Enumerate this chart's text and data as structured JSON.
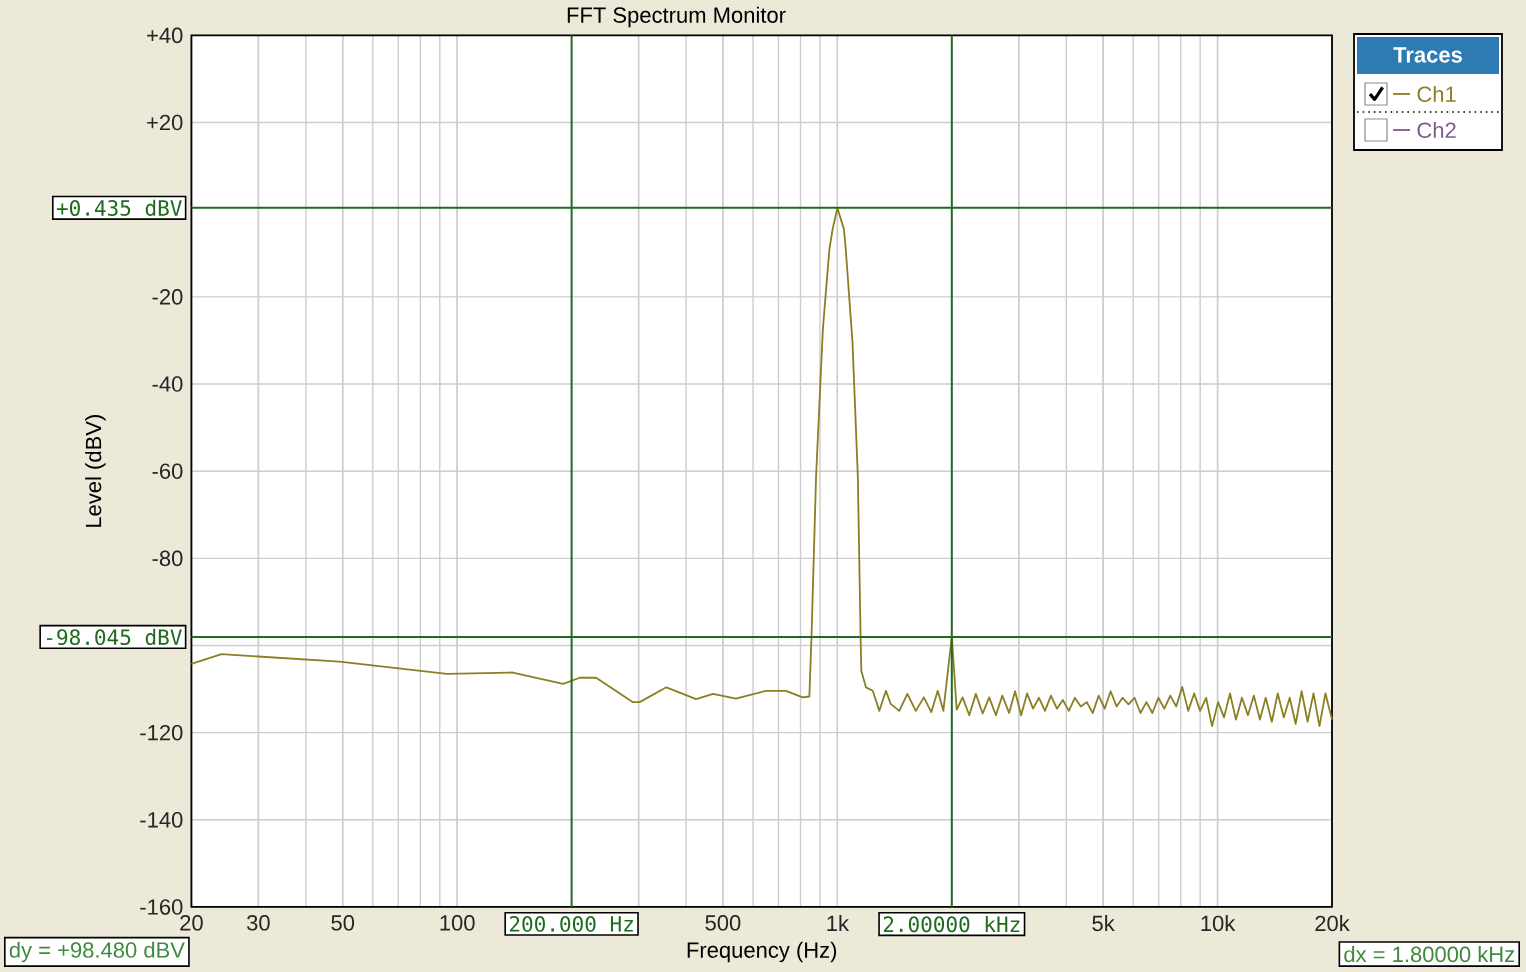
{
  "chart_data": {
    "type": "line",
    "title": "FFT Spectrum Monitor",
    "xlabel": "Frequency (Hz)",
    "ylabel": "Level (dBV)",
    "legend_title": "Traces",
    "log": "x",
    "grid": true,
    "legend": "top right",
    "xlim": [
      20,
      20000
    ],
    "ylim": [
      -160,
      40
    ],
    "xticks": [
      20,
      30,
      50,
      100,
      {
        "value": 300,
        "label": null
      },
      500,
      {
        "value": 1000,
        "label": "1k"
      },
      {
        "value": 3000,
        "label": null
      },
      {
        "value": 5000,
        "label": "5k"
      },
      {
        "value": 10000,
        "label": "10k"
      },
      {
        "value": 20000,
        "label": "20k"
      }
    ],
    "yticks": [
      {
        "value": 40,
        "label": "+40"
      },
      {
        "value": 20,
        "label": "+20"
      },
      -20,
      -40,
      -60,
      -80,
      {
        "value": -100,
        "label": null
      },
      -120,
      -140,
      -160
    ],
    "series": [
      {
        "name": "Ch1",
        "color": "#8a7f22",
        "x": [
          20,
          24,
          49,
          94,
          140,
          190,
          210,
          232,
          290,
          302,
          355,
          425,
          471,
          541,
          649,
          732,
          811,
          844,
          855,
          879,
          916,
          953,
          972,
          1000,
          1040,
          1052,
          1096,
          1132,
          1151,
          1156,
          1189,
          1239,
          1289,
          1342,
          1381,
          1455,
          1528,
          1608,
          1688,
          1766,
          1837,
          1900,
          2000,
          2060,
          2135,
          2223,
          2313,
          2411,
          2508,
          2612,
          2716,
          2829,
          2934,
          3043,
          3155,
          3271,
          3391,
          3516,
          3646,
          3780,
          3919,
          4063,
          4213,
          4368,
          4529,
          4695,
          4868,
          5047,
          5233,
          5425,
          5625,
          5832,
          6047,
          6269,
          6500,
          6739,
          6987,
          7244,
          7511,
          7787,
          8074,
          8371,
          8679,
          8998,
          9330,
          9673,
          10030,
          10400,
          10780,
          11180,
          11590,
          12020,
          12460,
          12920,
          13390,
          13890,
          14400,
          14930,
          15480,
          16050,
          16640,
          17250,
          17880,
          18540,
          19220,
          20000
        ],
        "values": [
          -104.2,
          -102,
          -103.7,
          -106.5,
          -106.2,
          -108.8,
          -107.4,
          -107.4,
          -113,
          -113,
          -109.6,
          -112.3,
          -111.1,
          -112.2,
          -110.4,
          -110.4,
          -111.9,
          -111.7,
          -98,
          -61.2,
          -27.4,
          -9,
          -4.4,
          0.4,
          -4.4,
          -9,
          -30.5,
          -61.2,
          -98,
          -105.8,
          -109.6,
          -110.4,
          -115,
          -110.4,
          -113.4,
          -115,
          -111.1,
          -115,
          -111.9,
          -115.3,
          -110.4,
          -115,
          -98,
          -114.7,
          -111.9,
          -116,
          -111.1,
          -115.6,
          -111.9,
          -116,
          -111.5,
          -115.5,
          -110.5,
          -116,
          -111,
          -114.5,
          -112,
          -115,
          -111.5,
          -114.5,
          -112.5,
          -115,
          -112,
          -114,
          -113,
          -115.5,
          -111.5,
          -114.5,
          -110.5,
          -114,
          -112,
          -113.5,
          -112,
          -115.5,
          -113,
          -115.5,
          -112,
          -114.5,
          -111.5,
          -114,
          -109.5,
          -115,
          -111,
          -115,
          -112,
          -118.5,
          -113,
          -116.5,
          -111,
          -117,
          -112,
          -116,
          -111.5,
          -117,
          -112,
          -117.5,
          -111,
          -116.5,
          -112,
          -118,
          -110.5,
          -117.5,
          -111,
          -118.5,
          -111,
          -117
        ]
      },
      {
        "name": "Ch2",
        "color": "#7d5a8c"
      }
    ],
    "ref_lines": [
      {
        "axis": "x",
        "value": 200,
        "label": "200.000 Hz",
        "color": "#1e6b1e"
      },
      {
        "axis": "x",
        "value": 2000,
        "label": "2.00000 kHz",
        "color": "#1e6b1e"
      },
      {
        "axis": "y",
        "value": 0.435,
        "label": "+0.435 dBV",
        "color": "#1e6b1e"
      },
      {
        "axis": "y",
        "value": -98.045,
        "label": "-98.045 dBV",
        "color": "#1e6b1e"
      }
    ],
    "annotations": [
      "dy = +98.480 dBV",
      "dx = 1.80000 kHz"
    ]
  }
}
